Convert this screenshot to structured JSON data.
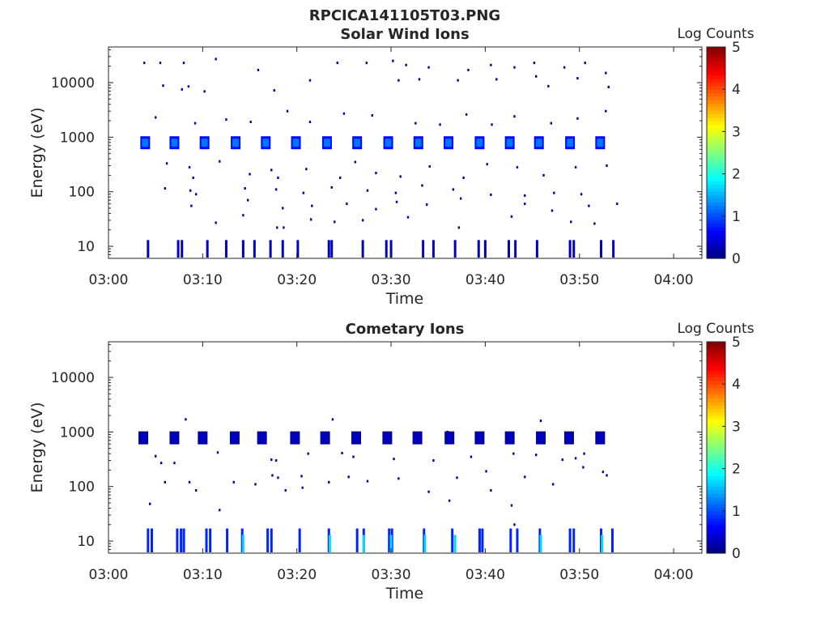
{
  "figure_title": "RPCICA141105T03.PNG",
  "chart_data": [
    {
      "type": "heatmap",
      "title": "Solar Wind Ions",
      "xlabel": "Time",
      "ylabel": "Energy (eV)",
      "x_ticks": [
        "03:00",
        "03:10",
        "03:20",
        "03:30",
        "03:40",
        "03:50",
        "04:00"
      ],
      "xlim_minutes": [
        0,
        63
      ],
      "y_ticks": [
        "10",
        "100",
        "1000",
        "10000"
      ],
      "y_scale": "log",
      "ylim_eV": [
        6,
        45000
      ],
      "colorbar": {
        "label": "Log Counts",
        "ticks": [
          "0",
          "1",
          "2",
          "3",
          "4",
          "5"
        ],
        "range": [
          0,
          5
        ],
        "colormap": "jet"
      },
      "main_band": {
        "energy_eV": 790,
        "log_counts": 1.2,
        "bursts_minutes": [
          3.9,
          7.0,
          10.2,
          13.5,
          16.7,
          19.9,
          23.2,
          26.4,
          29.7,
          32.9,
          36.1,
          39.4,
          42.6,
          45.7,
          49.0,
          52.2
        ]
      },
      "low_energy_spikes": {
        "energy_top_eV": 13,
        "log_counts": 0.3,
        "times_minutes": [
          4.2,
          7.4,
          7.8,
          10.5,
          12.5,
          14.3,
          15.5,
          17.2,
          18.5,
          20.1,
          23.4,
          23.7,
          27.0,
          29.5,
          30.0,
          33.4,
          34.5,
          36.8,
          39.3,
          40.0,
          42.5,
          43.2,
          45.5,
          49.0,
          49.4,
          52.3,
          53.6
        ]
      },
      "scatter_points": [
        [
          3.8,
          23000
        ],
        [
          5.5,
          23000
        ],
        [
          8.0,
          23000
        ],
        [
          11.4,
          27000
        ],
        [
          15.9,
          17000
        ],
        [
          24.3,
          23000
        ],
        [
          27.4,
          23000
        ],
        [
          30.2,
          25000
        ],
        [
          31.6,
          21000
        ],
        [
          34.0,
          19000
        ],
        [
          38.2,
          17000
        ],
        [
          40.6,
          21000
        ],
        [
          43.1,
          19000
        ],
        [
          45.2,
          23000
        ],
        [
          48.4,
          19000
        ],
        [
          50.6,
          23000
        ],
        [
          52.8,
          15000
        ],
        [
          5.8,
          8800
        ],
        [
          7.8,
          7500
        ],
        [
          8.5,
          8500
        ],
        [
          10.2,
          6900
        ],
        [
          17.6,
          7200
        ],
        [
          21.4,
          11000
        ],
        [
          30.8,
          11000
        ],
        [
          33.0,
          11500
        ],
        [
          37.1,
          11000
        ],
        [
          41.2,
          11500
        ],
        [
          45.4,
          13000
        ],
        [
          46.7,
          8600
        ],
        [
          49.8,
          12000
        ],
        [
          53.1,
          8300
        ],
        [
          5.0,
          2300
        ],
        [
          9.2,
          1800
        ],
        [
          12.5,
          2100
        ],
        [
          15.1,
          1900
        ],
        [
          19.0,
          3000
        ],
        [
          21.4,
          1900
        ],
        [
          25.0,
          2700
        ],
        [
          28.0,
          2500
        ],
        [
          32.6,
          1800
        ],
        [
          35.2,
          1700
        ],
        [
          38.0,
          2600
        ],
        [
          40.7,
          1700
        ],
        [
          43.1,
          2400
        ],
        [
          47.0,
          1800
        ],
        [
          49.8,
          2200
        ],
        [
          52.8,
          3000
        ],
        [
          6.2,
          330
        ],
        [
          8.6,
          280
        ],
        [
          9.0,
          180
        ],
        [
          11.8,
          360
        ],
        [
          15.0,
          210
        ],
        [
          17.3,
          250
        ],
        [
          18.0,
          180
        ],
        [
          21.0,
          260
        ],
        [
          24.6,
          180
        ],
        [
          26.2,
          350
        ],
        [
          28.4,
          220
        ],
        [
          31.0,
          190
        ],
        [
          34.1,
          290
        ],
        [
          37.7,
          180
        ],
        [
          40.2,
          320
        ],
        [
          43.4,
          280
        ],
        [
          46.2,
          200
        ],
        [
          49.6,
          280
        ],
        [
          52.9,
          300
        ],
        [
          6.0,
          115
        ],
        [
          8.7,
          105
        ],
        [
          9.3,
          90
        ],
        [
          14.5,
          115
        ],
        [
          17.8,
          110
        ],
        [
          20.7,
          95
        ],
        [
          23.7,
          120
        ],
        [
          27.5,
          105
        ],
        [
          30.5,
          95
        ],
        [
          33.3,
          130
        ],
        [
          36.6,
          110
        ],
        [
          40.6,
          88
        ],
        [
          44.2,
          85
        ],
        [
          47.3,
          95
        ],
        [
          50.2,
          90
        ],
        [
          8.8,
          55
        ],
        [
          14.8,
          70
        ],
        [
          18.5,
          50
        ],
        [
          21.6,
          55
        ],
        [
          25.3,
          60
        ],
        [
          28.4,
          48
        ],
        [
          30.6,
          65
        ],
        [
          33.8,
          58
        ],
        [
          37.4,
          75
        ],
        [
          44.2,
          60
        ],
        [
          47.1,
          45
        ],
        [
          51.0,
          55
        ],
        [
          54.0,
          60
        ],
        [
          11.4,
          27
        ],
        [
          14.3,
          37
        ],
        [
          17.9,
          22
        ],
        [
          18.6,
          22
        ],
        [
          21.5,
          31
        ],
        [
          24.0,
          28
        ],
        [
          27.0,
          30
        ],
        [
          31.8,
          34
        ],
        [
          37.2,
          22
        ],
        [
          42.8,
          35
        ],
        [
          49.1,
          28
        ],
        [
          51.6,
          26
        ]
      ]
    },
    {
      "type": "heatmap",
      "title": "Cometary Ions",
      "xlabel": "Time",
      "ylabel": "Energy (eV)",
      "x_ticks": [
        "03:00",
        "03:10",
        "03:20",
        "03:30",
        "03:40",
        "03:50",
        "04:00"
      ],
      "xlim_minutes": [
        0,
        63
      ],
      "y_ticks": [
        "10",
        "100",
        "1000",
        "10000"
      ],
      "y_scale": "log",
      "ylim_eV": [
        6,
        45000
      ],
      "colorbar": {
        "label": "Log Counts",
        "ticks": [
          "0",
          "1",
          "2",
          "3",
          "4",
          "5"
        ],
        "range": [
          0,
          5
        ],
        "colormap": "jet"
      },
      "main_band": {
        "energy_eV": 780,
        "log_counts": 0.3,
        "bursts_minutes": [
          3.7,
          7.0,
          10.0,
          13.4,
          16.3,
          19.8,
          23.0,
          26.3,
          29.6,
          32.8,
          36.2,
          39.4,
          42.6,
          45.9,
          48.9,
          52.2
        ]
      },
      "low_energy_spikes": {
        "energy_top_eV": 17,
        "log_counts": 0.8,
        "bright_times_minutes": [
          14.3,
          23.5,
          27.1,
          30.0,
          33.6,
          36.8,
          45.9,
          52.4
        ],
        "times_minutes": [
          4.2,
          4.6,
          7.3,
          7.7,
          8.0,
          10.4,
          10.8,
          12.6,
          14.2,
          16.9,
          17.3,
          20.3,
          23.4,
          26.4,
          27.1,
          29.8,
          30.1,
          33.5,
          36.5,
          39.4,
          39.7,
          42.7,
          43.4,
          45.8,
          49.0,
          49.4,
          52.3,
          53.5
        ]
      },
      "scatter_points": [
        [
          8.2,
          1700
        ],
        [
          23.8,
          1700
        ],
        [
          45.9,
          1600
        ],
        [
          36.0,
          1000
        ],
        [
          5.0,
          360
        ],
        [
          5.6,
          270
        ],
        [
          7.0,
          270
        ],
        [
          11.6,
          420
        ],
        [
          17.3,
          310
        ],
        [
          17.8,
          300
        ],
        [
          21.2,
          400
        ],
        [
          24.8,
          410
        ],
        [
          26.0,
          350
        ],
        [
          30.3,
          320
        ],
        [
          34.5,
          300
        ],
        [
          38.5,
          350
        ],
        [
          43.0,
          400
        ],
        [
          45.4,
          380
        ],
        [
          48.2,
          310
        ],
        [
          49.6,
          330
        ],
        [
          50.5,
          400
        ],
        [
          6.0,
          120
        ],
        [
          8.6,
          120
        ],
        [
          9.3,
          85
        ],
        [
          13.3,
          120
        ],
        [
          15.6,
          110
        ],
        [
          17.4,
          160
        ],
        [
          18.0,
          145
        ],
        [
          18.8,
          85
        ],
        [
          20.5,
          155
        ],
        [
          20.6,
          95
        ],
        [
          23.4,
          120
        ],
        [
          25.5,
          150
        ],
        [
          27.5,
          125
        ],
        [
          30.8,
          140
        ],
        [
          34.0,
          80
        ],
        [
          37.0,
          145
        ],
        [
          40.1,
          190
        ],
        [
          40.6,
          85
        ],
        [
          44.2,
          150
        ],
        [
          47.2,
          110
        ],
        [
          50.4,
          225
        ],
        [
          52.5,
          185
        ],
        [
          4.4,
          48
        ],
        [
          11.8,
          37
        ],
        [
          36.2,
          55
        ],
        [
          42.8,
          45
        ],
        [
          43.1,
          20
        ],
        [
          52.9,
          160
        ]
      ]
    }
  ]
}
